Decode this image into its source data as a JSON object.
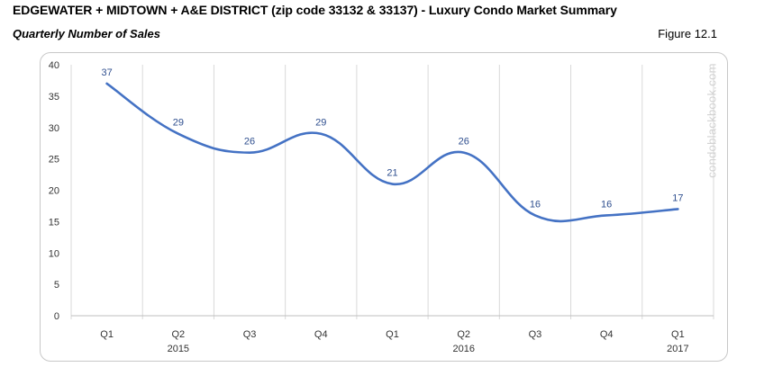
{
  "header": {
    "title": "EDGEWATER + MIDTOWN + A&E DISTRICT (zip code 33132 & 33137) - Luxury Condo Market Summary",
    "subtitle": "Quarterly Number of Sales",
    "figure": "Figure 12.1"
  },
  "watermark": "condoblackbook.com",
  "chart_data": {
    "type": "line",
    "title": "",
    "categories": [
      "Q1",
      "Q2",
      "Q3",
      "Q4",
      "Q1",
      "Q2",
      "Q3",
      "Q4",
      "Q1"
    ],
    "year_labels": [
      {
        "index": 1,
        "label": "2015"
      },
      {
        "index": 5,
        "label": "2016"
      },
      {
        "index": 8,
        "label": "2017"
      }
    ],
    "series": [
      {
        "values": [
          37,
          29,
          26,
          29,
          21,
          26,
          16,
          16,
          17
        ],
        "color": "#4472c4"
      }
    ],
    "ylim": [
      0,
      40
    ],
    "yticks": [
      0,
      5,
      10,
      15,
      20,
      25,
      30,
      35,
      40
    ],
    "xlabel": "",
    "ylabel": "",
    "grid": "vertical",
    "data_labels": true,
    "smooth": true
  }
}
